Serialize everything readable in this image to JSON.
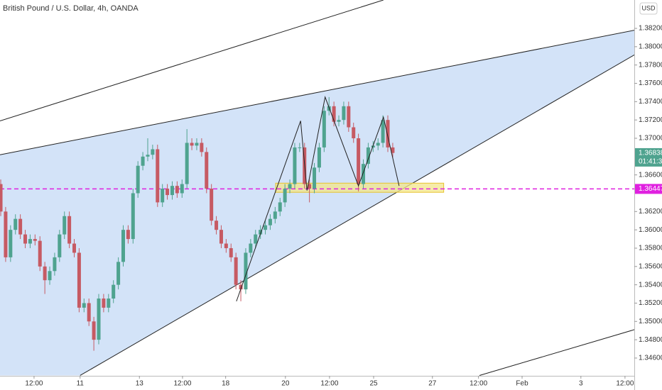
{
  "chart_data": {
    "type": "candlestick",
    "title": "British Pound / U.S. Dollar, 4h, OANDA",
    "currency": "USD",
    "up_color": "#4fa38f",
    "down_color": "#c65a63",
    "xlim": [
      -0.15,
      129.3
    ],
    "ylim": [
      1.34406,
      1.3851
    ],
    "xticks": [
      {
        "value": 6.8,
        "label": "12:00"
      },
      {
        "value": 16.2,
        "label": "11"
      },
      {
        "value": 28.3,
        "label": "13"
      },
      {
        "value": 37.1,
        "label": "12:00"
      },
      {
        "value": 45.9,
        "label": "18"
      },
      {
        "value": 58.1,
        "label": "20"
      },
      {
        "value": 67.1,
        "label": "12:00"
      },
      {
        "value": 76.1,
        "label": "25"
      },
      {
        "value": 88.1,
        "label": "27"
      },
      {
        "value": 97.5,
        "label": "12:00"
      },
      {
        "value": 106.4,
        "label": "Feb"
      },
      {
        "value": 118.4,
        "label": "3"
      },
      {
        "value": 127.4,
        "label": "12:00"
      }
    ],
    "yticks": [
      {
        "value": 1.346,
        "label": "1.34600"
      },
      {
        "value": 1.348,
        "label": "1.34800"
      },
      {
        "value": 1.35,
        "label": "1.35000"
      },
      {
        "value": 1.352,
        "label": "1.35200"
      },
      {
        "value": 1.354,
        "label": "1.35400"
      },
      {
        "value": 1.356,
        "label": "1.35600"
      },
      {
        "value": 1.358,
        "label": "1.35800"
      },
      {
        "value": 1.36,
        "label": "1.36000"
      },
      {
        "value": 1.362,
        "label": "1.36200"
      },
      {
        "value": 1.366,
        "label": "1.36600"
      },
      {
        "value": 1.37,
        "label": "1.37000"
      },
      {
        "value": 1.372,
        "label": "1.37200"
      },
      {
        "value": 1.374,
        "label": "1.37400"
      },
      {
        "value": 1.376,
        "label": "1.37600"
      },
      {
        "value": 1.378,
        "label": "1.37800"
      },
      {
        "value": 1.38,
        "label": "1.38000"
      },
      {
        "value": 1.382,
        "label": "1.38200"
      }
    ],
    "open": [
      1.365,
      1.362,
      1.357,
      1.36,
      1.3612,
      1.3595,
      1.3585,
      1.359,
      1.3588,
      1.356,
      1.3545,
      1.3555,
      1.357,
      1.3595,
      1.3615,
      1.3585,
      1.3575,
      1.3515,
      1.352,
      1.35,
      1.348,
      1.3525,
      1.3515,
      1.3525,
      1.354,
      1.3565,
      1.36,
      1.359,
      1.364,
      1.367,
      1.368,
      1.3682,
      1.3688,
      1.363,
      1.3645,
      1.3638,
      1.3648,
      1.364,
      1.365,
      1.3695,
      1.3692,
      1.3695,
      1.3685,
      1.3645,
      1.361,
      1.36,
      1.3585,
      1.358,
      1.357,
      1.354,
      1.3535,
      1.3575,
      1.3585,
      1.3595,
      1.36,
      1.3605,
      1.3612,
      1.362,
      1.363,
      1.3645,
      1.365,
      1.369,
      1.369,
      1.365,
      1.3645,
      1.3668,
      1.369,
      1.373,
      1.3735,
      1.3718,
      1.372,
      1.3735,
      1.3712,
      1.37,
      1.365,
      1.3672,
      1.369,
      1.3692,
      1.3695,
      1.372,
      1.369
    ],
    "high": [
      1.3655,
      1.3625,
      1.3605,
      1.3617,
      1.3617,
      1.36,
      1.3595,
      1.3595,
      1.3593,
      1.3565,
      1.356,
      1.3575,
      1.36,
      1.362,
      1.362,
      1.359,
      1.358,
      1.3525,
      1.3525,
      1.3505,
      1.353,
      1.353,
      1.353,
      1.3545,
      1.357,
      1.3605,
      1.3605,
      1.3645,
      1.3675,
      1.3685,
      1.37,
      1.3693,
      1.3693,
      1.365,
      1.365,
      1.3653,
      1.3653,
      1.3655,
      1.371,
      1.37,
      1.37,
      1.37,
      1.369,
      1.365,
      1.3615,
      1.3605,
      1.359,
      1.3585,
      1.3575,
      1.3545,
      1.358,
      1.359,
      1.36,
      1.3605,
      1.361,
      1.3617,
      1.3625,
      1.3635,
      1.365,
      1.3655,
      1.3695,
      1.3695,
      1.3695,
      1.3655,
      1.3673,
      1.3695,
      1.3735,
      1.3745,
      1.374,
      1.3725,
      1.374,
      1.374,
      1.3717,
      1.3705,
      1.3677,
      1.3695,
      1.3697,
      1.37,
      1.3725,
      1.3725,
      1.3695
    ],
    "low": [
      1.3615,
      1.3565,
      1.3565,
      1.3595,
      1.359,
      1.358,
      1.358,
      1.3583,
      1.3555,
      1.353,
      1.354,
      1.355,
      1.3565,
      1.359,
      1.358,
      1.357,
      1.351,
      1.351,
      1.3495,
      1.3468,
      1.3475,
      1.351,
      1.351,
      1.352,
      1.3535,
      1.356,
      1.3585,
      1.3585,
      1.3635,
      1.3665,
      1.3675,
      1.3677,
      1.3625,
      1.3625,
      1.3633,
      1.3633,
      1.3635,
      1.3635,
      1.3645,
      1.3687,
      1.3687,
      1.368,
      1.364,
      1.3605,
      1.3595,
      1.358,
      1.3575,
      1.3565,
      1.3535,
      1.3522,
      1.353,
      1.357,
      1.358,
      1.359,
      1.3595,
      1.36,
      1.3607,
      1.3615,
      1.3625,
      1.364,
      1.3645,
      1.3685,
      1.3645,
      1.363,
      1.364,
      1.3663,
      1.3685,
      1.3725,
      1.3713,
      1.3713,
      1.3715,
      1.3707,
      1.3695,
      1.3642,
      1.3645,
      1.3667,
      1.3685,
      1.3687,
      1.369,
      1.3685,
      1.3679
    ],
    "close": [
      1.362,
      1.357,
      1.36,
      1.3612,
      1.3595,
      1.3585,
      1.359,
      1.3588,
      1.356,
      1.3545,
      1.3555,
      1.357,
      1.3595,
      1.3615,
      1.3585,
      1.3575,
      1.3515,
      1.352,
      1.35,
      1.348,
      1.3525,
      1.3515,
      1.3525,
      1.354,
      1.3565,
      1.36,
      1.359,
      1.364,
      1.367,
      1.368,
      1.3682,
      1.3688,
      1.363,
      1.3645,
      1.3638,
      1.3648,
      1.364,
      1.365,
      1.3695,
      1.3692,
      1.3695,
      1.3685,
      1.3645,
      1.361,
      1.36,
      1.3585,
      1.358,
      1.357,
      1.354,
      1.3535,
      1.3575,
      1.3585,
      1.3595,
      1.36,
      1.3605,
      1.3612,
      1.362,
      1.363,
      1.3645,
      1.365,
      1.369,
      1.369,
      1.365,
      1.3645,
      1.3668,
      1.369,
      1.373,
      1.3735,
      1.3718,
      1.372,
      1.3735,
      1.3712,
      1.37,
      1.365,
      1.3672,
      1.369,
      1.3692,
      1.3695,
      1.372,
      1.369,
      1.3684
    ],
    "last_price": {
      "value": 1.36838,
      "countdown": "01:41:37",
      "color": "#4fa38f"
    },
    "level": {
      "value": 1.36447,
      "color": "#e020e0"
    },
    "zone": {
      "x": [
        56.1,
        90.4
      ],
      "y": [
        1.3641,
        1.3651
      ],
      "color": "#f3e58a"
    },
    "wedge": {
      "color": "#d3e3f8",
      "x": [
        -0.15,
        129.3,
        129.3,
        16.2,
        -0.15
      ],
      "y": [
        1.3682,
        1.3818,
        1.3791,
        1.3441,
        1.3441
      ]
    },
    "trendlines": [
      {
        "x": [
          -0.15,
          78.1
        ],
        "y": [
          1.3719,
          1.3851
        ]
      },
      {
        "x": [
          -0.15,
          129.3
        ],
        "y": [
          1.3682,
          1.3818
        ]
      },
      {
        "x": [
          16.2,
          129.3
        ],
        "y": [
          1.3441,
          1.3791
        ]
      },
      {
        "x": [
          97.7,
          129.3
        ],
        "y": [
          1.3441,
          1.3491
        ]
      }
    ],
    "pattern": {
      "x": [
        48.1,
        61.2,
        62.5,
        66.2,
        73.0,
        78.1,
        81.3
      ],
      "y": [
        1.3522,
        1.3719,
        1.3643,
        1.3745,
        1.3648,
        1.3723,
        1.3648
      ]
    }
  }
}
